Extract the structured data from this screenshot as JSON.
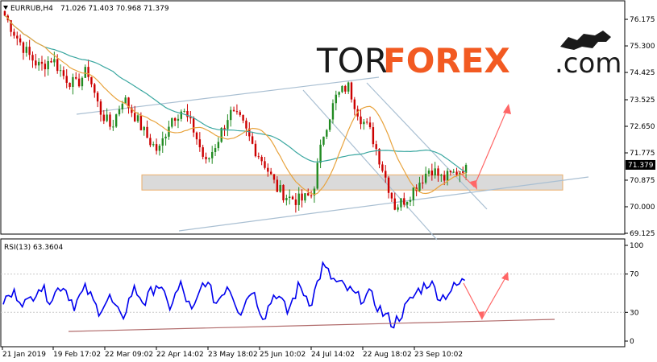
{
  "header": {
    "symbol": "EURRUB,H4",
    "ohlc": "71.026 71.403 70.968 71.379"
  },
  "logo": {
    "part1": "TOR",
    "part2": "FOREX",
    "part3": ".com"
  },
  "price_axis_labels": [
    "76.175",
    "75.300",
    "74.425",
    "73.525",
    "72.650",
    "71.775",
    "70.875",
    "70.000",
    "69.125"
  ],
  "current_price_tag": "71.379",
  "rsi_panel": {
    "label": "RSI(13) 63.3604",
    "axis_labels": [
      "100",
      "70",
      "30",
      "0"
    ]
  },
  "time_axis_labels": [
    "21 Jan 2019",
    "19 Feb 17:02",
    "22 Mar 09:02",
    "22 Apr 14:02",
    "23 May 18:02",
    "25 Jun 10:02",
    "24 Jul 14:02",
    "22 Aug 18:02",
    "23 Sep 10:02"
  ],
  "colors": {
    "bull": "#228b22",
    "bear": "#cc0000",
    "ma_fast": "#e8a33d",
    "ma_slow": "#3aa7a0",
    "channel": "#a9bfd2",
    "zone_fill": "#d4d4d4",
    "zone_border": "#e8a050",
    "rsi_line": "#0000ee",
    "rsi_trend": "#b06a6a",
    "arrow": "#ff6666",
    "logo_orange": "#f25a22"
  },
  "chart_data": [
    {
      "type": "candlestick",
      "title": "EURRUB,H4",
      "ylim": [
        69.125,
        76.6
      ],
      "y_ticks": [
        76.175,
        75.3,
        74.425,
        73.525,
        72.65,
        71.775,
        70.875,
        70.0,
        69.125
      ],
      "x_tick_labels": [
        "21 Jan 2019",
        "19 Feb 17:02",
        "22 Mar 09:02",
        "22 Apr 14:02",
        "23 May 18:02",
        "25 Jun 10:02",
        "24 Jul 14:02",
        "22 Aug 18:02",
        "23 Sep 10:02"
      ],
      "close_path": [
        76.3,
        75.6,
        75.0,
        74.6,
        74.9,
        74.3,
        74.0,
        74.5,
        73.2,
        72.6,
        73.6,
        73.0,
        72.3,
        71.8,
        72.9,
        73.2,
        72.5,
        71.4,
        72.2,
        73.1,
        72.8,
        72.0,
        71.4,
        70.6,
        70.3,
        70.2,
        70.4,
        72.5,
        73.6,
        74.0,
        73.0,
        72.4,
        71.2,
        70.0,
        70.3,
        70.8,
        71.3,
        70.9,
        71.1,
        71.38
      ],
      "last_price": 71.379,
      "support_zone": [
        70.55,
        71.05
      ]
    },
    {
      "type": "line",
      "title": "RSI(13) 63.3604",
      "ylim": [
        0,
        100
      ],
      "y_ticks": [
        100,
        70,
        30,
        0
      ],
      "series": [
        {
          "values": [
            42,
            50,
            38,
            58,
            44,
            60,
            38,
            55,
            32,
            45,
            22,
            55,
            40,
            62,
            35,
            58,
            28,
            65,
            40,
            60,
            30,
            55,
            25,
            52,
            30,
            58,
            40,
            78,
            62,
            55,
            45,
            48,
            30,
            18,
            35,
            52,
            62,
            45,
            55,
            63.36
          ]
        }
      ]
    }
  ]
}
